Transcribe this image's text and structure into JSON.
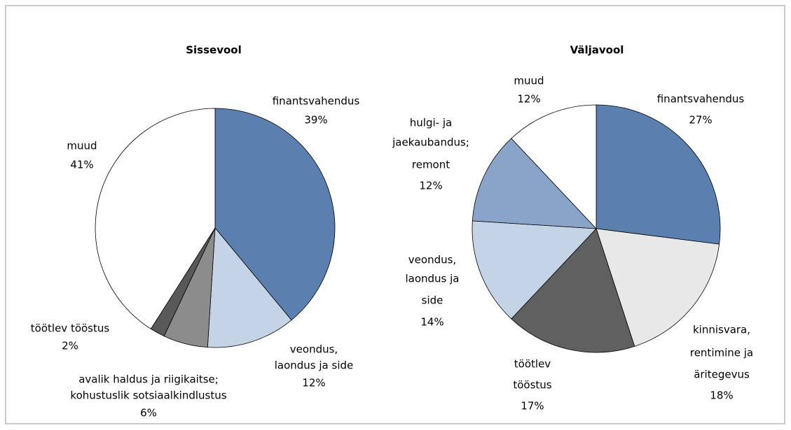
{
  "chart_data": [
    {
      "type": "pie",
      "title": "Sissevool",
      "categories": [
        [
          "finantsvahendus"
        ],
        [
          "veondus,",
          "laondus ja side"
        ],
        [
          "avalik haldus  ja riigikaitse;",
          "kohustuslik  sotsiaalkindlustus"
        ],
        [
          "töötlev  tööstus"
        ],
        [
          "muud"
        ]
      ],
      "values": [
        39,
        12,
        6,
        2,
        41
      ],
      "value_labels": [
        "39%",
        "12%",
        "6%",
        "2%",
        "41%"
      ],
      "colors": [
        "#5b7fae",
        "#c5d3e6",
        "#8c8c8c",
        "#595959",
        "#ffffff"
      ]
    },
    {
      "type": "pie",
      "title": "Väljavool",
      "categories": [
        [
          "finantsvahendus"
        ],
        [
          "kinnisvara,",
          "rentimine ja",
          "äritegevus"
        ],
        [
          "töötlev",
          "tööstus"
        ],
        [
          "veondus,",
          "laondus ja",
          "side"
        ],
        [
          "hulgi- ja",
          "jaekaubandus;",
          "remont"
        ],
        [
          "muud"
        ]
      ],
      "values": [
        27,
        18,
        17,
        14,
        12,
        12
      ],
      "value_labels": [
        "27%",
        "18%",
        "17%",
        "14%",
        "12%",
        "12%"
      ],
      "colors": [
        "#5b7fae",
        "#e8e8e8",
        "#606060",
        "#c5d3e6",
        "#8aa3c8",
        "#ffffff"
      ]
    }
  ]
}
